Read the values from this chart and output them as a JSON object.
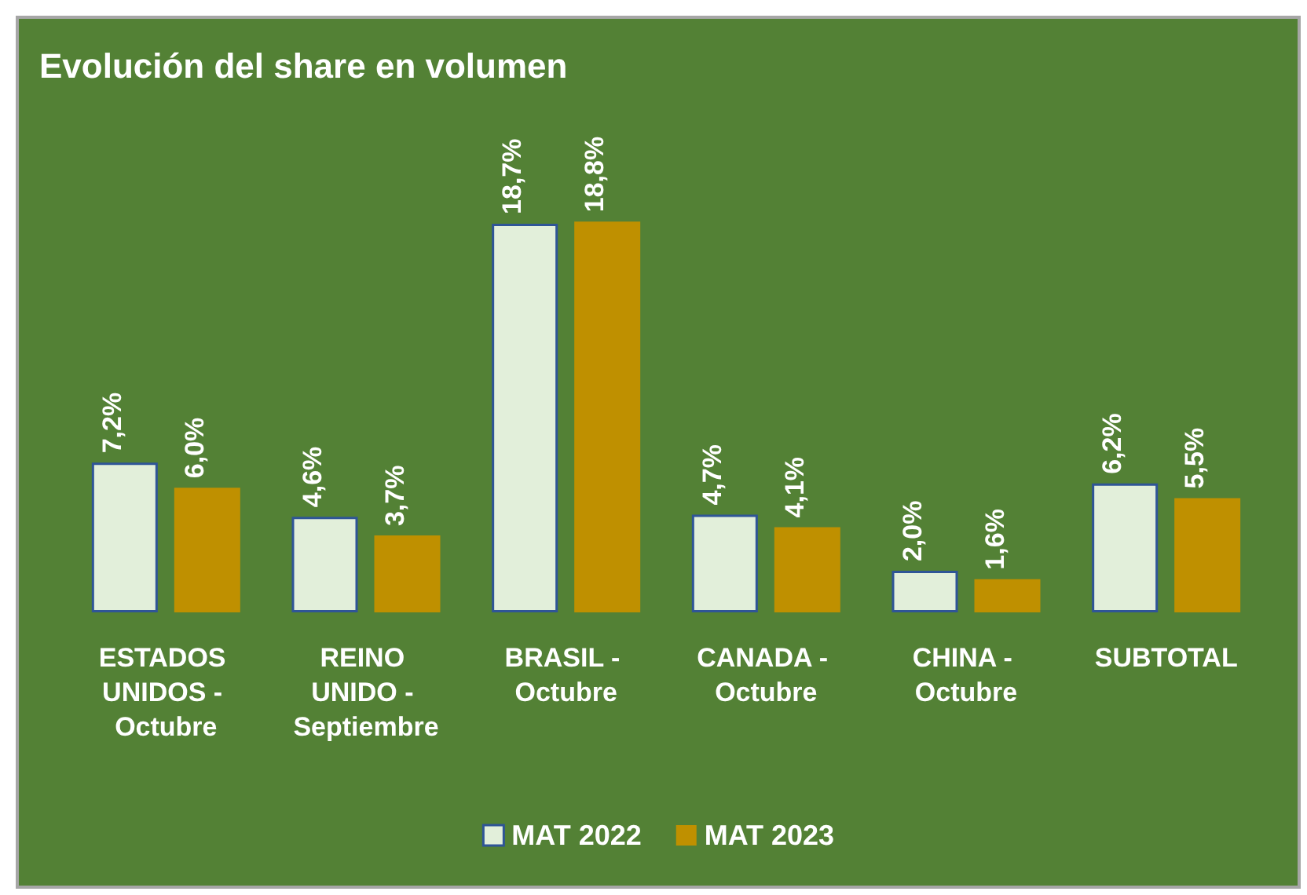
{
  "chart_data": {
    "type": "bar",
    "title": "Evolución del share en volumen",
    "categories": [
      "ESTADOS UNIDOS - Octubre",
      "REINO UNIDO - Septiembre",
      "BRASIL - Octubre",
      "CANADA - Octubre",
      "CHINA - Octubre",
      "SUBTOTAL"
    ],
    "series": [
      {
        "name": "MAT 2022",
        "color": "#e2efda",
        "values": [
          7.2,
          4.6,
          18.7,
          4.7,
          2.0,
          6.2
        ],
        "value_labels": [
          "7,2%",
          "4,6%",
          "18,7%",
          "4,7%",
          "2,0%",
          "6,2%"
        ]
      },
      {
        "name": "MAT 2023",
        "color": "#bf9000",
        "values": [
          6.0,
          3.7,
          18.8,
          4.1,
          1.6,
          5.5
        ],
        "value_labels": [
          "6,0%",
          "3,7%",
          "18,8%",
          "4,1%",
          "1,6%",
          "5,5%"
        ]
      }
    ],
    "legend": "bottom"
  }
}
